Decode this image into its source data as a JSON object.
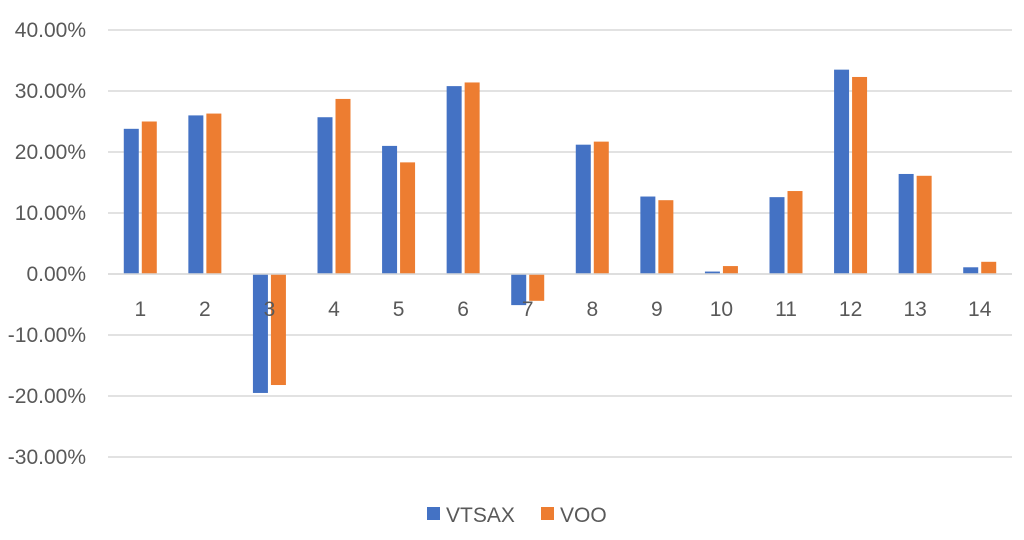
{
  "chart_data": {
    "type": "bar",
    "categories": [
      "1",
      "2",
      "3",
      "4",
      "5",
      "6",
      "7",
      "8",
      "9",
      "10",
      "11",
      "12",
      "13",
      "14"
    ],
    "series": [
      {
        "name": "VTSAX",
        "color": "#4472C4",
        "values": [
          23.8,
          26.0,
          -19.5,
          25.7,
          21.0,
          30.8,
          -5.1,
          21.2,
          12.7,
          0.4,
          12.6,
          33.5,
          16.4,
          1.1
        ]
      },
      {
        "name": "VOO",
        "color": "#ED7D31",
        "values": [
          25.0,
          26.3,
          -18.2,
          28.7,
          18.3,
          31.4,
          -4.4,
          21.7,
          12.1,
          1.3,
          13.6,
          32.3,
          16.1,
          2.0
        ]
      }
    ],
    "ylim": [
      -30,
      40
    ],
    "yticks": [
      -30,
      -20,
      -10,
      0,
      10,
      20,
      30,
      40
    ],
    "ytick_labels": [
      "-30.00%",
      "-20.00%",
      "-10.00%",
      "0.00%",
      "10.00%",
      "20.00%",
      "30.00%",
      "40.00%"
    ],
    "grid": true,
    "legend": "bottom-center",
    "title": "",
    "xlabel": "",
    "ylabel": ""
  }
}
